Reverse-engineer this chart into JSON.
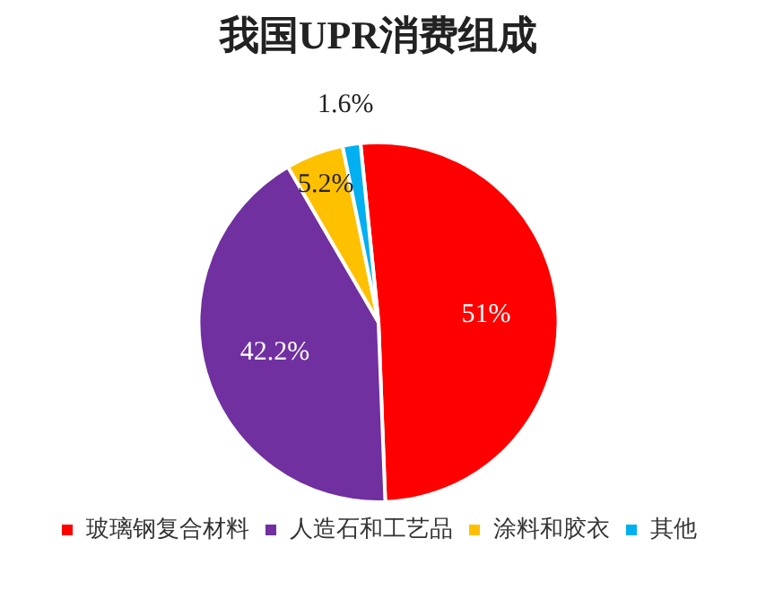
{
  "chart_data": {
    "type": "pie",
    "title": "我国UPR消费组成",
    "categories": [
      "玻璃钢复合材料",
      "人造石和工艺品",
      "涂料和胶衣",
      "其他"
    ],
    "values": [
      51,
      42.2,
      5.2,
      1.6
    ],
    "colors": [
      "#ff0000",
      "#7030a0",
      "#ffc000",
      "#00b0f0"
    ],
    "value_labels": [
      "51%",
      "42.2%",
      "5.2%",
      "1.6%"
    ],
    "legend": "bottom"
  }
}
